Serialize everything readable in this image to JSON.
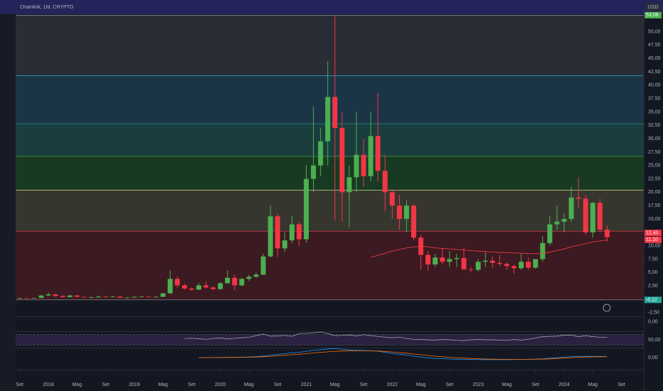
{
  "header": {
    "title": "Chainlink, 1M, CRYPTO",
    "currency": "USD"
  },
  "chart_data": [
    {
      "type": "candlestick",
      "xlim": [
        -0.57,
        87.12
      ],
      "xticks": [
        {
          "value": 0,
          "label": "Set"
        },
        {
          "value": 4,
          "label": "2018"
        },
        {
          "value": 8,
          "label": "Mag"
        },
        {
          "value": 12,
          "label": "Set"
        },
        {
          "value": 16,
          "label": "2019"
        },
        {
          "value": 20,
          "label": "Mag"
        },
        {
          "value": 24,
          "label": "Set"
        },
        {
          "value": 28,
          "label": "2020"
        },
        {
          "value": 32,
          "label": "Mag"
        },
        {
          "value": 36,
          "label": "Set"
        },
        {
          "value": 40,
          "label": "2021"
        },
        {
          "value": 44,
          "label": "Mag"
        },
        {
          "value": 48,
          "label": "Set"
        },
        {
          "value": 52,
          "label": "2022"
        },
        {
          "value": 56,
          "label": "Mag"
        },
        {
          "value": 60,
          "label": "Set"
        },
        {
          "value": 64,
          "label": "2023"
        },
        {
          "value": 68,
          "label": "Mag"
        },
        {
          "value": 72,
          "label": "Set"
        },
        {
          "value": 76,
          "label": "2024"
        },
        {
          "value": 80,
          "label": "Mag"
        },
        {
          "value": 84,
          "label": "Set"
        }
      ],
      "ylim": [
        -3.2,
        53.0
      ],
      "yticks": [
        {
          "value": 50,
          "label": "50,00"
        },
        {
          "value": 47.5,
          "label": "47,50"
        },
        {
          "value": 45,
          "label": "45,00"
        },
        {
          "value": 42.5,
          "label": "42,50"
        },
        {
          "value": 40,
          "label": "40,00"
        },
        {
          "value": 37.5,
          "label": "37,50"
        },
        {
          "value": 35,
          "label": "35,00"
        },
        {
          "value": 32.5,
          "label": "32,50"
        },
        {
          "value": 30,
          "label": "30,00"
        },
        {
          "value": 27.5,
          "label": "27,50"
        },
        {
          "value": 25,
          "label": "25,00"
        },
        {
          "value": 22.5,
          "label": "22,50"
        },
        {
          "value": 20,
          "label": "20,00"
        },
        {
          "value": 17.5,
          "label": "17,50"
        },
        {
          "value": 15,
          "label": "15,00"
        },
        {
          "value": 12.5,
          "label": "12,50"
        },
        {
          "value": 10,
          "label": "10,00"
        },
        {
          "value": 7.5,
          "label": "7,50"
        },
        {
          "value": 5,
          "label": "5,00"
        },
        {
          "value": 2.5,
          "label": "2,50"
        },
        {
          "value": -2.5,
          "label": "-2,50"
        }
      ],
      "up_color": "#4caf50",
      "down_color": "#f23645",
      "open": [
        0.12,
        0.2,
        0.15,
        0.25,
        0.7,
        0.9,
        0.6,
        0.4,
        0.7,
        0.45,
        0.35,
        0.35,
        0.5,
        0.45,
        0.5,
        0.3,
        0.3,
        0.45,
        0.5,
        0.45,
        0.45,
        1.1,
        3.8,
        2.6,
        2.0,
        1.8,
        2.6,
        2.2,
        1.9,
        3.0,
        4.0,
        2.6,
        3.8,
        4.2,
        4.6,
        8.0,
        15.5,
        9.5,
        11.0,
        14.0,
        11.2,
        22.5,
        25.0,
        29.5,
        37.8,
        32.0,
        20.0,
        22.8,
        27.0,
        23.0,
        30.5,
        24.0,
        20.0,
        17.5,
        15.0,
        17.5,
        11.5,
        8.3,
        6.5,
        7.8,
        7.0,
        7.5,
        7.7,
        5.6,
        5.5,
        7.0,
        7.2,
        6.8,
        6.6,
        6.2,
        5.8,
        7.0,
        5.9,
        7.5,
        10.5,
        14.0,
        14.5,
        15.0,
        19.0,
        18.8,
        12.5,
        18.0,
        13.0
      ],
      "high": [
        0.3,
        0.25,
        0.3,
        0.8,
        1.3,
        1.0,
        0.8,
        0.8,
        0.8,
        0.5,
        0.5,
        0.7,
        0.6,
        0.6,
        0.55,
        0.4,
        0.5,
        0.6,
        0.55,
        0.6,
        1.2,
        5.4,
        4.3,
        2.9,
        2.2,
        3.0,
        3.3,
        2.4,
        3.2,
        5.4,
        4.6,
        4.0,
        4.6,
        5.0,
        8.5,
        17.5,
        16.0,
        12.5,
        15.5,
        14.5,
        25.0,
        36.0,
        32.0,
        44.5,
        52.9,
        35.0,
        25.0,
        35.0,
        30.0,
        35.0,
        38.5,
        27.0,
        20.5,
        19.5,
        18.5,
        17.8,
        12.0,
        9.0,
        8.5,
        9.5,
        9.0,
        8.5,
        9.7,
        6.0,
        7.5,
        9.0,
        8.0,
        8.3,
        6.9,
        6.5,
        8.5,
        7.8,
        7.5,
        11.8,
        15.5,
        17.5,
        16.0,
        21.0,
        22.8,
        19.5,
        18.2,
        18.8,
        13.8
      ],
      "low": [
        0.1,
        0.12,
        0.13,
        0.2,
        0.6,
        0.5,
        0.35,
        0.35,
        0.4,
        0.3,
        0.3,
        0.3,
        0.4,
        0.4,
        0.3,
        0.25,
        0.3,
        0.4,
        0.4,
        0.4,
        0.4,
        1.0,
        2.2,
        1.8,
        1.5,
        1.7,
        2.0,
        1.7,
        1.8,
        2.9,
        1.6,
        2.4,
        3.4,
        4.0,
        4.5,
        7.8,
        8.0,
        8.8,
        10.5,
        10.0,
        10.5,
        20.0,
        23.0,
        25.0,
        14.7,
        14.5,
        13.5,
        20.0,
        21.0,
        22.0,
        22.0,
        16.5,
        15.0,
        13.0,
        12.5,
        11.0,
        5.5,
        5.3,
        6.0,
        6.5,
        6.0,
        6.0,
        5.5,
        5.0,
        5.2,
        6.0,
        5.8,
        6.2,
        5.5,
        4.8,
        5.5,
        5.5,
        5.7,
        7.0,
        10.0,
        13.0,
        12.5,
        14.5,
        17.0,
        12.0,
        11.5,
        12.5,
        10.8
      ],
      "close": [
        0.2,
        0.15,
        0.25,
        0.7,
        0.9,
        0.6,
        0.4,
        0.7,
        0.45,
        0.35,
        0.35,
        0.5,
        0.45,
        0.5,
        0.3,
        0.3,
        0.45,
        0.5,
        0.45,
        0.45,
        1.1,
        3.8,
        2.6,
        2.0,
        1.8,
        2.6,
        2.2,
        1.9,
        3.0,
        4.0,
        2.6,
        3.8,
        4.2,
        4.6,
        8.0,
        15.5,
        9.5,
        11.0,
        14.0,
        11.2,
        22.5,
        25.0,
        29.5,
        37.8,
        32.0,
        20.0,
        22.8,
        27.0,
        23.0,
        30.5,
        24.0,
        20.0,
        17.5,
        15.0,
        17.5,
        11.5,
        8.3,
        6.5,
        7.8,
        7.0,
        7.5,
        7.7,
        5.6,
        5.5,
        7.0,
        7.2,
        6.8,
        6.6,
        6.2,
        5.8,
        7.0,
        5.9,
        7.5,
        10.5,
        14.0,
        14.5,
        15.0,
        19.0,
        18.8,
        12.5,
        18.0,
        13.0,
        11.58
      ],
      "ma": [
        null,
        null,
        null,
        null,
        null,
        null,
        null,
        null,
        null,
        null,
        null,
        null,
        null,
        null,
        null,
        null,
        null,
        null,
        null,
        null,
        null,
        null,
        null,
        null,
        null,
        null,
        null,
        null,
        null,
        null,
        null,
        null,
        null,
        null,
        null,
        null,
        null,
        null,
        null,
        null,
        null,
        null,
        null,
        null,
        null,
        null,
        null,
        null,
        null,
        7.8,
        8.2,
        8.6,
        9.0,
        9.3,
        9.6,
        9.8,
        9.9,
        9.8,
        9.6,
        9.5,
        9.4,
        9.3,
        9.2,
        9.1,
        9.0,
        8.9,
        8.8,
        8.75,
        8.7,
        8.65,
        8.6,
        8.55,
        8.5,
        8.6,
        8.8,
        9.1,
        9.4,
        9.8,
        10.1,
        10.4,
        10.7,
        10.9,
        11.1
      ],
      "ma_color": "#f23645",
      "levels": [
        53.08,
        41.8,
        32.8,
        26.7,
        20.4,
        12.7,
        -0.12
      ],
      "level_colors": [
        "#9598a1",
        "#26c6da",
        "#26a69a",
        "#4caf50",
        "#d4d48a",
        "#f23645",
        "#9598a1"
      ],
      "zone_colors": [
        "#2a2d35",
        "#1b3547",
        "#1a3d3d",
        "#193a22",
        "#36362f",
        "#3b1a21"
      ],
      "price_labels": [
        {
          "value": 53.08,
          "label": "53,08",
          "color": "#4caf50"
        },
        {
          "value": 12.4,
          "label": "12,40",
          "color": "#f23645"
        },
        {
          "value": 11.1,
          "label": "11,10",
          "color": "#f23645"
        },
        {
          "value": -0.12,
          "label": "-0,12",
          "color": "#26a69a"
        }
      ]
    },
    {
      "type": "volume",
      "ylim": [
        -1.9,
        1
      ],
      "yticks": [
        {
          "value": 0,
          "label": "0,00"
        }
      ]
    },
    {
      "type": "rsi",
      "ylim": [
        20,
        80
      ],
      "yticks": [
        {
          "value": 50,
          "label": "50,00"
        }
      ],
      "bands": [
        70,
        30
      ],
      "color": "#b2b5be",
      "values": [
        null,
        null,
        null,
        null,
        null,
        null,
        null,
        null,
        null,
        null,
        null,
        null,
        null,
        null,
        null,
        null,
        null,
        null,
        null,
        null,
        null,
        null,
        null,
        55,
        56,
        54,
        52,
        55,
        57,
        53,
        56,
        58,
        60,
        66,
        72,
        64,
        65,
        67,
        63,
        74,
        75,
        77,
        80,
        74,
        66,
        67,
        69,
        65,
        70,
        66,
        63,
        60,
        58,
        60,
        55,
        52,
        51,
        50,
        49,
        51,
        50,
        48,
        47,
        50,
        51,
        50,
        50,
        49,
        48,
        51,
        49,
        52,
        57,
        62,
        63,
        64,
        68,
        68,
        62,
        66,
        62,
        60,
        59
      ]
    },
    {
      "type": "macd",
      "ylim": [
        -4.5,
        3.5
      ],
      "yticks": [
        {
          "value": 0,
          "label": "0,00"
        }
      ],
      "series": [
        {
          "color": "#2196f3",
          "values": [
            null,
            null,
            null,
            null,
            null,
            null,
            null,
            null,
            null,
            null,
            null,
            null,
            null,
            null,
            null,
            null,
            null,
            null,
            null,
            null,
            null,
            null,
            null,
            null,
            null,
            0.05,
            0.06,
            0.07,
            0.1,
            0.15,
            0.15,
            0.2,
            0.3,
            0.4,
            0.6,
            1.0,
            1.2,
            1.5,
            1.8,
            2.0,
            2.4,
            2.8,
            3.0,
            3.3,
            3.4,
            3.2,
            2.9,
            2.8,
            2.7,
            2.6,
            2.4,
            2.0,
            1.6,
            1.3,
            1.0,
            0.6,
            0.2,
            -0.1,
            -0.3,
            -0.4,
            -0.5,
            -0.55,
            -0.6,
            -0.65,
            -0.7,
            -0.7,
            -0.7,
            -0.7,
            -0.7,
            -0.7,
            -0.65,
            -0.6,
            -0.5,
            -0.4,
            -0.2,
            0,
            0.2,
            0.4,
            0.5,
            0.5,
            0.5,
            0.5,
            0.4
          ]
        },
        {
          "color": "#ff6d00",
          "values": [
            null,
            null,
            null,
            null,
            null,
            null,
            null,
            null,
            null,
            null,
            null,
            null,
            null,
            null,
            null,
            null,
            null,
            null,
            null,
            null,
            null,
            null,
            null,
            null,
            null,
            0.03,
            0.04,
            0.05,
            0.07,
            0.1,
            0.12,
            0.15,
            0.2,
            0.25,
            0.35,
            0.5,
            0.7,
            0.9,
            1.1,
            1.3,
            1.5,
            1.8,
            2.0,
            2.2,
            2.4,
            2.5,
            2.55,
            2.6,
            2.6,
            2.55,
            2.5,
            2.35,
            2.15,
            1.9,
            1.7,
            1.4,
            1.1,
            0.8,
            0.55,
            0.35,
            0.15,
            0,
            -0.15,
            -0.3,
            -0.4,
            -0.5,
            -0.55,
            -0.6,
            -0.62,
            -0.64,
            -0.65,
            -0.64,
            -0.6,
            -0.55,
            -0.45,
            -0.3,
            -0.15,
            0,
            0.15,
            0.25,
            0.3,
            0.35,
            0.37
          ]
        }
      ]
    }
  ]
}
